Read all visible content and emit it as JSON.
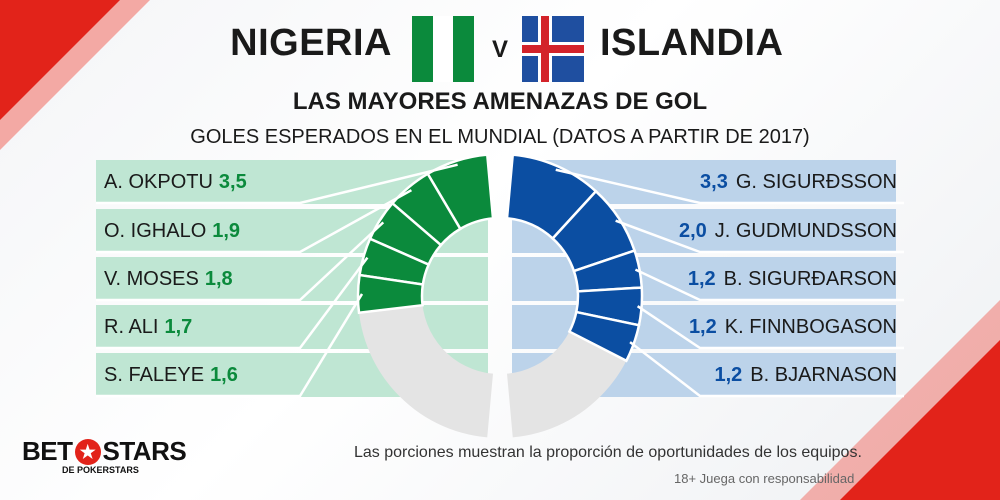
{
  "header": {
    "team_left": "NIGERIA",
    "vs": "V",
    "team_right": "ISLANDIA",
    "title": "LAS MAYORES AMENAZAS DE GOL",
    "subtitle": "GOLES ESPERADOS EN EL MUNDIAL (DATOS A PARTIR DE 2017)"
  },
  "colors": {
    "nigeria": "#0b8a3c",
    "nigeria_panel": "#bfe6d3",
    "iceland": "#0b4ea2",
    "iceland_panel": "#bcd3ea",
    "remainder": "#e4e4e4",
    "brand_red": "#e2231a"
  },
  "chart_data": {
    "type": "pie",
    "series": [
      {
        "name": "NIGERIA",
        "categories": [
          "A. OKPOTU",
          "O. IGHALO",
          "V. MOSES",
          "R. ALI",
          "S. FALEYE"
        ],
        "values": [
          3.5,
          1.9,
          1.8,
          1.7,
          1.6
        ],
        "value_labels": [
          "3,5",
          "1,9",
          "1,8",
          "1,7",
          "1,6"
        ],
        "share_of_half": [
          0.15,
          0.11,
          0.1,
          0.09,
          0.09
        ]
      },
      {
        "name": "ISLANDIA",
        "categories": [
          "G. SIGURÐSSON",
          "J. GUDMUNDSSON",
          "B. SIGURÐARSON",
          "K. FINNBOGASON",
          "B. BJARNASON"
        ],
        "values": [
          3.3,
          2.0,
          1.2,
          1.2,
          1.2
        ],
        "value_labels": [
          "3,3",
          "2,0",
          "1,2",
          "1,2",
          "1,2"
        ],
        "share_of_half": [
          0.22,
          0.17,
          0.09,
          0.09,
          0.09
        ]
      }
    ]
  },
  "footnote": "Las porciones muestran la proporción de oportunidades de los equipos.",
  "disclaimer": "18+ Juega con responsabilidad",
  "logo": {
    "left": "BET",
    "star": "★",
    "right": "STARS",
    "sub": "DE POKERSTARS"
  }
}
